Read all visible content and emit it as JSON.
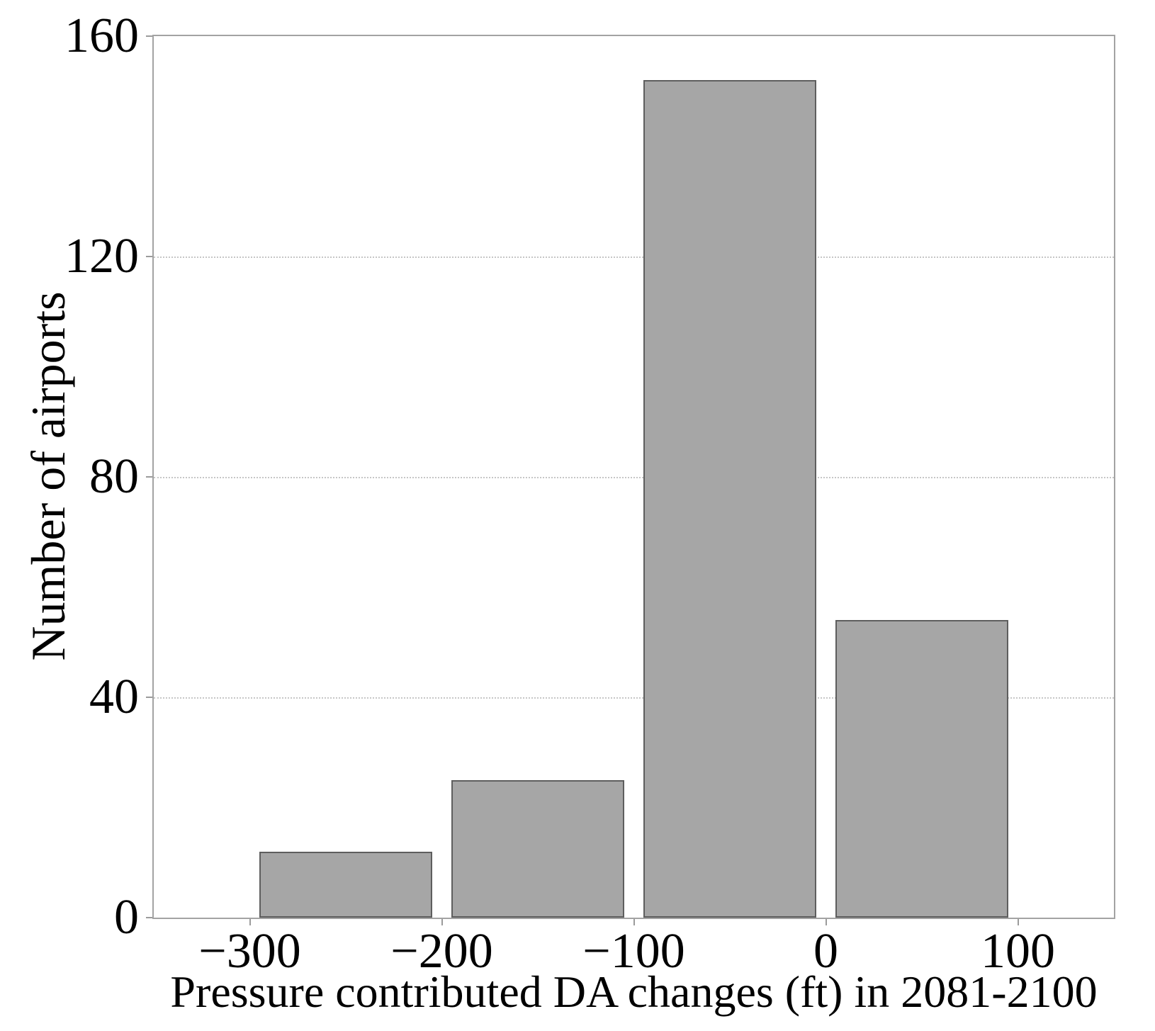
{
  "chart_data": {
    "type": "bar",
    "subtype": "histogram",
    "title": "",
    "xlabel": "Pressure contributed DA changes (ft) in 2081-2100",
    "ylabel": "Number of airports",
    "bins": [
      [
        -300,
        -200
      ],
      [
        -200,
        -100
      ],
      [
        -100,
        0
      ],
      [
        0,
        100
      ]
    ],
    "bin_centers": [
      -250,
      -150,
      -50,
      50
    ],
    "values": [
      12,
      25,
      152,
      54
    ],
    "xlim": [
      -350,
      150
    ],
    "ylim": [
      0,
      160
    ],
    "x_ticks": [
      {
        "value": -300,
        "label": "−300"
      },
      {
        "value": -200,
        "label": "−200"
      },
      {
        "value": -100,
        "label": "−100"
      },
      {
        "value": 0,
        "label": "0"
      },
      {
        "value": 100,
        "label": "100"
      }
    ],
    "y_ticks": [
      {
        "value": 0,
        "label": "0"
      },
      {
        "value": 40,
        "label": "40"
      },
      {
        "value": 80,
        "label": "80"
      },
      {
        "value": 120,
        "label": "120"
      },
      {
        "value": 160,
        "label": "160"
      }
    ],
    "grid_y_values": [
      40,
      80,
      120
    ],
    "grid_style": "dotted",
    "legend": null,
    "colors": {
      "bar_fill": "#a6a6a6",
      "bar_edge": "#5e5e5e",
      "spine": "#a3a3a3",
      "gridline": "#c6c6c6",
      "tick": "#9b9b9b",
      "text": "#000000",
      "background": "#ffffff"
    },
    "bar_width_fraction_of_bin": 0.9
  }
}
